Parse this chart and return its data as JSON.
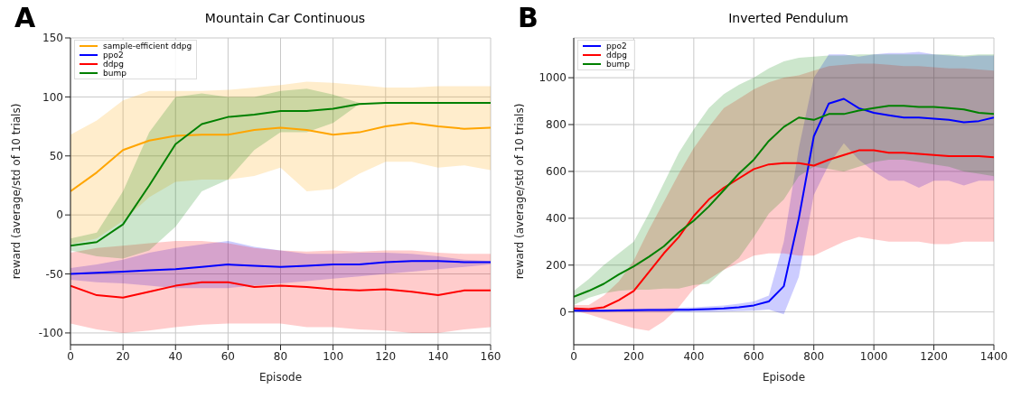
{
  "chart_data": [
    {
      "type": "line",
      "title": "Mountain Car Continuous",
      "annotations": [
        "A"
      ],
      "xlabel": "Episode",
      "ylabel": "reward (average/std of 10 trials)",
      "x": [
        0,
        10,
        20,
        30,
        40,
        50,
        60,
        70,
        80,
        90,
        100,
        110,
        120,
        130,
        140,
        150,
        160
      ],
      "xlim": [
        0,
        160
      ],
      "xticks": [
        0,
        20,
        40,
        60,
        80,
        100,
        120,
        140,
        160
      ],
      "ylim": [
        -110,
        150
      ],
      "yticks": [
        -100,
        -50,
        0,
        50,
        100,
        150
      ],
      "grid": true,
      "legend": "top left",
      "series": [
        {
          "name": "sample-efficient ddpg",
          "color": "#ffa500",
          "values": [
            20,
            36,
            55,
            63,
            67,
            68,
            68,
            72,
            74,
            72,
            68,
            70,
            75,
            78,
            75,
            73,
            74
          ],
          "lower": [
            -25,
            -20,
            -5,
            15,
            28,
            30,
            30,
            33,
            40,
            20,
            22,
            35,
            45,
            45,
            40,
            42,
            38
          ],
          "upper": [
            68,
            80,
            97,
            105,
            105,
            105,
            106,
            108,
            110,
            113,
            112,
            110,
            108,
            108,
            109,
            109,
            109
          ]
        },
        {
          "name": "ppo2",
          "color": "#0000ff",
          "values": [
            -50,
            -49,
            -48,
            -47,
            -46,
            -44,
            -42,
            -43,
            -44,
            -43,
            -42,
            -42,
            -40,
            -39,
            -39,
            -40,
            -40
          ],
          "lower": [
            -55,
            -57,
            -58,
            -60,
            -62,
            -62,
            -62,
            -60,
            -58,
            -56,
            -54,
            -52,
            -50,
            -48,
            -46,
            -44,
            -42
          ],
          "upper": [
            -45,
            -42,
            -38,
            -32,
            -28,
            -25,
            -22,
            -27,
            -30,
            -33,
            -33,
            -32,
            -32,
            -33,
            -35,
            -38,
            -39
          ]
        },
        {
          "name": "ddpg",
          "color": "#ff0000",
          "values": [
            -60,
            -68,
            -70,
            -65,
            -60,
            -57,
            -57,
            -61,
            -60,
            -61,
            -63,
            -64,
            -63,
            -65,
            -68,
            -64,
            -64
          ],
          "lower": [
            -92,
            -97,
            -100,
            -98,
            -95,
            -93,
            -92,
            -92,
            -92,
            -95,
            -95,
            -97,
            -98,
            -100,
            -100,
            -97,
            -95
          ],
          "upper": [
            -32,
            -28,
            -26,
            -24,
            -22,
            -22,
            -24,
            -28,
            -30,
            -31,
            -30,
            -31,
            -30,
            -30,
            -32,
            -33,
            -33
          ]
        },
        {
          "name": "bump",
          "color": "#008000",
          "values": [
            -26,
            -23,
            -8,
            25,
            60,
            77,
            83,
            85,
            88,
            88,
            90,
            94,
            95,
            95,
            95,
            95,
            95
          ],
          "lower": [
            -30,
            -35,
            -37,
            -30,
            -10,
            20,
            30,
            55,
            70,
            70,
            78,
            94,
            95,
            95,
            95,
            95,
            95
          ],
          "upper": [
            -20,
            -15,
            20,
            70,
            100,
            103,
            100,
            100,
            105,
            107,
            102,
            95,
            95,
            95,
            95,
            95,
            95
          ]
        }
      ]
    },
    {
      "type": "line",
      "title": "Inverted Pendulum",
      "annotations": [
        "B"
      ],
      "xlabel": "Episode",
      "ylabel": "reward (average/std of 10 trials)",
      "x": [
        0,
        50,
        100,
        150,
        200,
        250,
        300,
        350,
        400,
        450,
        500,
        550,
        600,
        650,
        700,
        750,
        800,
        850,
        900,
        950,
        1000,
        1050,
        1100,
        1150,
        1200,
        1250,
        1300,
        1350,
        1400
      ],
      "xlim": [
        0,
        1400
      ],
      "xticks": [
        0,
        200,
        400,
        600,
        800,
        1000,
        1200,
        1400
      ],
      "ylim": [
        -140,
        1170
      ],
      "yticks": [
        0,
        200,
        400,
        600,
        800,
        1000
      ],
      "grid": true,
      "legend": "top left",
      "series": [
        {
          "name": "ppo2",
          "color": "#0000ff",
          "values": [
            5,
            5,
            5,
            6,
            7,
            8,
            8,
            9,
            10,
            12,
            15,
            20,
            28,
            45,
            110,
            400,
            750,
            890,
            910,
            870,
            850,
            840,
            830,
            830,
            825,
            820,
            810,
            815,
            830
          ],
          "lower": [
            0,
            0,
            0,
            0,
            0,
            0,
            0,
            0,
            0,
            0,
            2,
            4,
            5,
            10,
            -10,
            150,
            500,
            630,
            720,
            650,
            600,
            560,
            560,
            530,
            560,
            560,
            540,
            560,
            560
          ],
          "upper": [
            10,
            10,
            10,
            12,
            14,
            15,
            16,
            18,
            20,
            24,
            28,
            35,
            45,
            70,
            300,
            700,
            1000,
            1100,
            1100,
            1090,
            1100,
            1105,
            1105,
            1110,
            1100,
            1095,
            1090,
            1095,
            1095
          ]
        },
        {
          "name": "ddpg",
          "color": "#ff0000",
          "values": [
            15,
            12,
            20,
            50,
            90,
            170,
            250,
            320,
            410,
            480,
            530,
            570,
            610,
            630,
            635,
            635,
            625,
            650,
            670,
            690,
            690,
            680,
            680,
            675,
            670,
            665,
            665,
            665,
            660
          ],
          "lower": [
            5,
            -10,
            -30,
            -50,
            -70,
            -80,
            -40,
            20,
            100,
            140,
            180,
            210,
            240,
            250,
            250,
            240,
            240,
            270,
            300,
            320,
            310,
            300,
            300,
            300,
            290,
            290,
            300,
            300,
            300
          ],
          "upper": [
            30,
            30,
            70,
            130,
            220,
            350,
            470,
            590,
            700,
            790,
            870,
            910,
            950,
            980,
            1000,
            1010,
            1030,
            1050,
            1055,
            1060,
            1060,
            1055,
            1050,
            1050,
            1045,
            1040,
            1040,
            1035,
            1030
          ]
        },
        {
          "name": "bump",
          "color": "#008000",
          "values": [
            65,
            90,
            120,
            160,
            195,
            235,
            280,
            340,
            390,
            450,
            520,
            590,
            650,
            730,
            790,
            830,
            820,
            845,
            845,
            860,
            870,
            880,
            880,
            875,
            875,
            870,
            865,
            850,
            845
          ],
          "lower": [
            30,
            60,
            80,
            90,
            95,
            95,
            100,
            100,
            115,
            120,
            180,
            230,
            320,
            420,
            480,
            580,
            620,
            610,
            600,
            620,
            640,
            650,
            650,
            640,
            630,
            620,
            600,
            590,
            580
          ],
          "upper": [
            90,
            140,
            200,
            250,
            300,
            420,
            550,
            680,
            780,
            870,
            930,
            970,
            1000,
            1040,
            1070,
            1085,
            1090,
            1095,
            1095,
            1100,
            1100,
            1100,
            1100,
            1100,
            1100,
            1100,
            1095,
            1100,
            1100
          ]
        }
      ]
    }
  ]
}
